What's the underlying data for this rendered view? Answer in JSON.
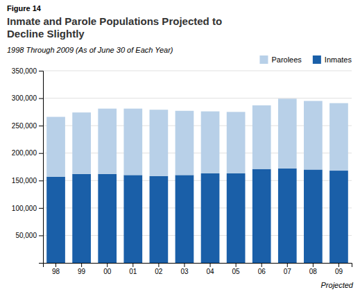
{
  "chart_data": {
    "type": "bar",
    "stacked": true,
    "title": "Inmate and Parole Populations Projected to\nDecline Slightly",
    "subtitle": "1998 Through 2009 (As of June 30 of Each Year)",
    "annotations": [
      {
        "text": "Figure 14"
      },
      {
        "text": "Projected"
      }
    ],
    "categories": [
      "98",
      "99",
      "00",
      "01",
      "02",
      "03",
      "04",
      "05",
      "06",
      "07",
      "08",
      "09"
    ],
    "series": [
      {
        "name": "Inmates",
        "color": "#1a5fa8",
        "values": [
          157000,
          162000,
          162000,
          160000,
          158000,
          160000,
          163000,
          163000,
          171000,
          172000,
          170000,
          168000
        ]
      },
      {
        "name": "Parolees",
        "color": "#b8d0e8",
        "values": [
          109000,
          112000,
          119000,
          121000,
          121000,
          117000,
          113000,
          112000,
          116000,
          127000,
          125000,
          123000
        ]
      }
    ],
    "ylim": [
      0,
      350000
    ],
    "yticks": [
      {
        "value": 50000,
        "label": "50,000"
      },
      {
        "value": 100000,
        "label": "100,000"
      },
      {
        "value": 150000,
        "label": "150,000"
      },
      {
        "value": 200000,
        "label": "200,000"
      },
      {
        "value": 250000,
        "label": "250,000"
      },
      {
        "value": 300000,
        "label": "300,000"
      },
      {
        "value": 350000,
        "label": "350,000"
      }
    ],
    "grid": true,
    "legend": "upper right"
  }
}
